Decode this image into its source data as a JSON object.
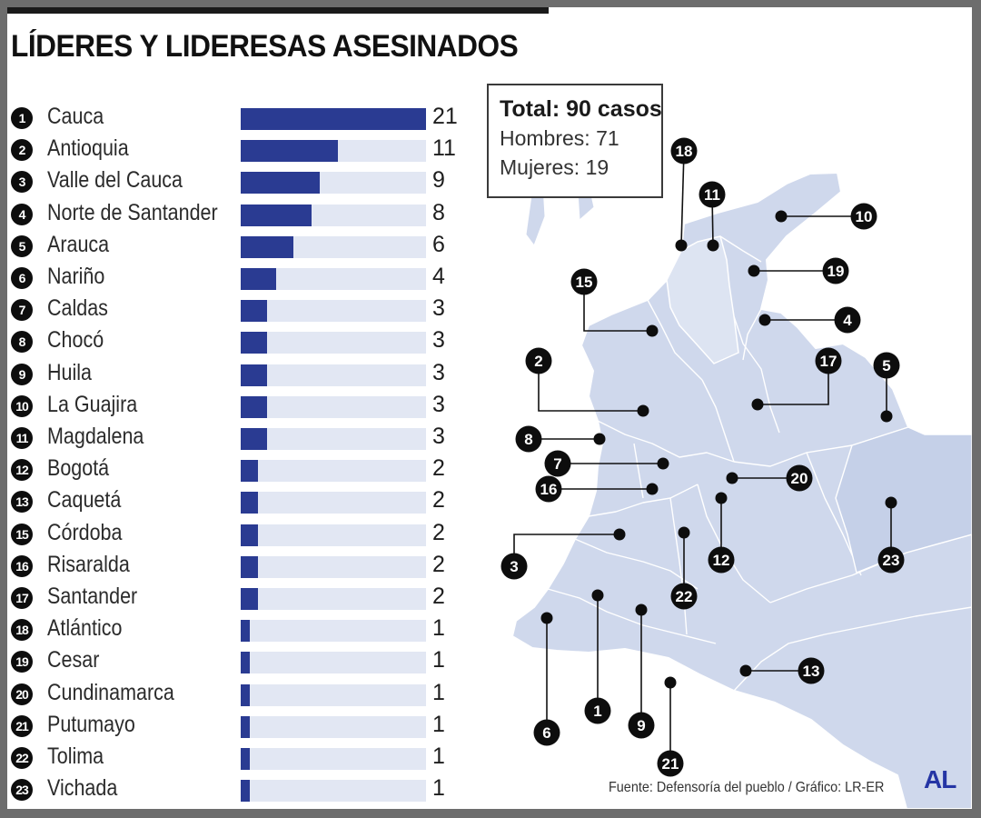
{
  "title": "LÍDERES Y LIDERESAS ASESINADOS",
  "summary": {
    "total": "Total: 90 casos",
    "men": "Hombres: 71",
    "women": "Mujeres: 19"
  },
  "source": "Fuente:  Defensoría del pueblo / Gráfico: LR-ER",
  "logo": "AL",
  "colors": {
    "bar": "#2a3b92",
    "track": "#e2e7f3",
    "map_fill": "#cfd8ec",
    "map_line": "#ffffff",
    "marker": "#0d0d0d"
  },
  "chart_data": {
    "type": "bar",
    "orientation": "horizontal",
    "xlim": [
      0,
      21
    ],
    "categories": [
      "Cauca",
      "Antioquia",
      "Valle del Cauca",
      "Norte de Santander",
      "Arauca",
      "Nariño",
      "Caldas",
      "Chocó",
      "Huila",
      "La Guajira",
      "Magdalena",
      "Bogotá",
      "Caquetá",
      "Córdoba",
      "Risaralda",
      "Santander",
      "Atlántico",
      "Cesar",
      "Cundinamarca",
      "Putumayo",
      "Tolima",
      "Vichada"
    ],
    "rank": [
      "1",
      "2",
      "3",
      "4",
      "5",
      "6",
      "7",
      "8",
      "9",
      "10",
      "11",
      "12",
      "13",
      "15",
      "16",
      "17",
      "18",
      "19",
      "20",
      "21",
      "22",
      "23"
    ],
    "values": [
      21,
      11,
      9,
      8,
      6,
      4,
      3,
      3,
      3,
      3,
      3,
      2,
      2,
      2,
      2,
      2,
      1,
      1,
      1,
      1,
      1,
      1
    ]
  },
  "map_markers": [
    {
      "label": "18"
    },
    {
      "label": "11"
    },
    {
      "label": "10"
    },
    {
      "label": "19"
    },
    {
      "label": "15"
    },
    {
      "label": "4"
    },
    {
      "label": "2"
    },
    {
      "label": "17"
    },
    {
      "label": "5"
    },
    {
      "label": "8"
    },
    {
      "label": "7"
    },
    {
      "label": "16"
    },
    {
      "label": "20"
    },
    {
      "label": "3"
    },
    {
      "label": "12"
    },
    {
      "label": "23"
    },
    {
      "label": "22"
    },
    {
      "label": "13"
    },
    {
      "label": "6"
    },
    {
      "label": "1"
    },
    {
      "label": "9"
    },
    {
      "label": "21"
    }
  ]
}
